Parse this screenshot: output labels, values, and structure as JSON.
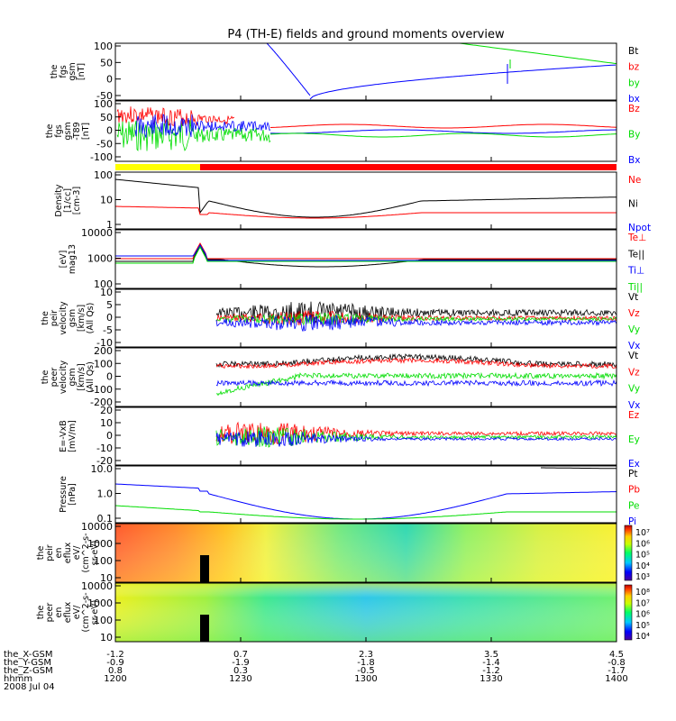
{
  "title": "P4 (TH-E) fields and ground moments overview",
  "colors": {
    "black": "#000000",
    "red": "#ff0000",
    "green": "#00dd00",
    "blue": "#0000ff",
    "yellow": "#ffff00"
  },
  "chart_data": {
    "type": "line",
    "x_ticks": [
      "1200",
      "1230",
      "1300",
      "1330",
      "1400"
    ],
    "orbit_rows": [
      {
        "label": "the_X-GSM",
        "values": [
          "-1.2",
          "0.7",
          "2.3",
          "3.5",
          "4.5"
        ]
      },
      {
        "label": "the_Y-GSM",
        "values": [
          "-0.9",
          "-1.9",
          "-1.8",
          "-1.4",
          "-0.8"
        ]
      },
      {
        "label": "the_Z-GSM",
        "values": [
          "0.8",
          "0.3",
          "-0.5",
          "-1.2",
          "-1.7"
        ]
      },
      {
        "label": "hhmm",
        "values": []
      },
      {
        "label": "2008 Jul 04",
        "values": []
      }
    ],
    "panels": [
      {
        "id": "fgs",
        "ylabel": [
          "the",
          "fgs",
          "gsm",
          "[nT]"
        ],
        "yticks": [
          "100",
          "50",
          "0",
          "-50"
        ],
        "legend": [
          {
            "name": "Bt",
            "color": "#000000"
          },
          {
            "name": "bz",
            "color": "#ff0000"
          },
          {
            "name": "by",
            "color": "#00dd00"
          },
          {
            "name": "bx",
            "color": "#0000ff"
          }
        ]
      },
      {
        "id": "fgs_t89",
        "ylabel": [
          "the",
          "fgs",
          "gsm",
          "-T89",
          "[nT]"
        ],
        "yticks": [
          "100",
          "50",
          "0",
          "-50",
          "-100"
        ],
        "legend": [
          {
            "name": "Bz",
            "color": "#ff0000"
          },
          {
            "name": "By",
            "color": "#00dd00"
          },
          {
            "name": "Bx",
            "color": "#0000ff"
          }
        ]
      },
      {
        "id": "density",
        "ylabel": [
          "Density",
          "[1/cc]",
          "[cm-3]"
        ],
        "yticks": [
          "100",
          "10",
          "1"
        ],
        "legend": [
          {
            "name": "Ne",
            "color": "#ff0000"
          },
          {
            "name": "Ni",
            "color": "#000000"
          },
          {
            "name": "Npot",
            "color": "#0000ff"
          }
        ]
      },
      {
        "id": "temp",
        "ylabel": [
          "[eV]",
          "mag13"
        ],
        "yticks": [
          "10000",
          "1000",
          "100"
        ],
        "legend": [
          {
            "name": "Te⊥",
            "color": "#ff0000"
          },
          {
            "name": "Te||",
            "color": "#000000"
          },
          {
            "name": "Ti⊥",
            "color": "#0000ff"
          },
          {
            "name": "Ti||",
            "color": "#00dd00"
          }
        ]
      },
      {
        "id": "peir_vel",
        "ylabel": [
          "the",
          "peir",
          "velocity",
          "gsm",
          "[km/s]",
          "(All Qs)"
        ],
        "yticks": [
          "10",
          "5",
          "0",
          "-5",
          "-10"
        ],
        "legend": [
          {
            "name": "Vt",
            "color": "#000000"
          },
          {
            "name": "Vz",
            "color": "#ff0000"
          },
          {
            "name": "Vy",
            "color": "#00dd00"
          },
          {
            "name": "Vx",
            "color": "#0000ff"
          }
        ]
      },
      {
        "id": "peer_vel",
        "ylabel": [
          "the",
          "peer",
          "velocity",
          "gsm",
          "[km/s]",
          "(All Qs)"
        ],
        "yticks": [
          "200",
          "100",
          "0",
          "-100",
          "-200"
        ],
        "legend": [
          {
            "name": "Vt",
            "color": "#000000"
          },
          {
            "name": "Vz",
            "color": "#ff0000"
          },
          {
            "name": "Vy",
            "color": "#00dd00"
          },
          {
            "name": "Vx",
            "color": "#0000ff"
          }
        ]
      },
      {
        "id": "efield",
        "ylabel": [
          "E=-VxB",
          "[mV/m]"
        ],
        "yticks": [
          "20",
          "10",
          "0",
          "-10",
          "-20"
        ],
        "legend": [
          {
            "name": "Ez",
            "color": "#ff0000"
          },
          {
            "name": "Ey",
            "color": "#00dd00"
          },
          {
            "name": "Ex",
            "color": "#0000ff"
          }
        ]
      },
      {
        "id": "pressure",
        "ylabel": [
          "Pressure",
          "[nPa]"
        ],
        "yticks": [
          "10.0",
          "1.0",
          "0.1"
        ],
        "legend": [
          {
            "name": "Pt",
            "color": "#000000"
          },
          {
            "name": "Pb",
            "color": "#ff0000"
          },
          {
            "name": "Pe",
            "color": "#00dd00"
          },
          {
            "name": "Pi",
            "color": "#0000ff"
          }
        ]
      },
      {
        "id": "peir_spec",
        "ylabel": [
          "the",
          "peir",
          "en",
          "eflux",
          "eV/",
          "(cm^2-s-",
          "sr-eV)"
        ],
        "yticks": [
          "10000",
          "1000",
          "100",
          "10"
        ],
        "colorbar": [
          "10⁷",
          "10⁶",
          "10⁵",
          "10⁴",
          "10³"
        ]
      },
      {
        "id": "peer_spec",
        "ylabel": [
          "the",
          "peer",
          "en",
          "eflux",
          "eV/",
          "(cm^2-s-",
          "sr-eV)"
        ],
        "yticks": [
          "10000",
          "1000",
          "100",
          "10"
        ],
        "colorbar": [
          "10⁸",
          "10⁷",
          "10⁶",
          "10⁵",
          "10⁴"
        ]
      }
    ]
  }
}
